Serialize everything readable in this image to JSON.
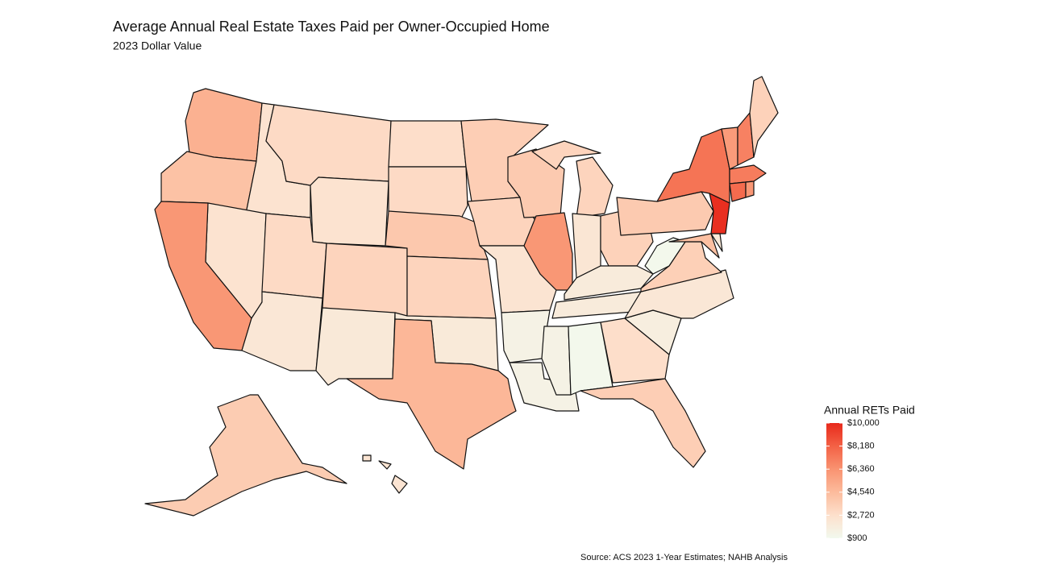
{
  "chart_data": {
    "type": "choropleth",
    "title": "Average Annual Real Estate Taxes Paid per Owner-Occupied Home",
    "subtitle": "2023 Dollar Value",
    "source": "Source: ACS 2023 1-Year Estimates; NAHB Analysis",
    "legend_title": "Annual RETs Paid",
    "values": [
      5000,
      4200,
      2500,
      3000,
      2500,
      2500,
      6200,
      3000,
      2200,
      3300,
      2100,
      2800,
      3000,
      3900,
      3300,
      2000,
      4700,
      3600,
      3300,
      2400,
      1400,
      1400,
      3800,
      6200,
      3300,
      2300,
      3400,
      1900,
      1900,
      1400,
      1000,
      2800,
      3600,
      1700,
      2200,
      3500,
      1000,
      3800,
      7500,
      9800,
      4300,
      2000,
      6000,
      7000,
      3400,
      7200,
      7800,
      6200,
      3700,
      2400
    ],
    "colorlim": [
      900,
      10000
    ],
    "colorticks": [
      {
        "value": 900,
        "label": "$900"
      },
      {
        "value": 2720,
        "label": "$2,720"
      },
      {
        "value": 4540,
        "label": "$4,540"
      },
      {
        "value": 6360,
        "label": "$6,360"
      },
      {
        "value": 8180,
        "label": "$8,180"
      },
      {
        "value": 10000,
        "label": "$10,000"
      }
    ],
    "colors": [
      "#f2f9ee",
      "#fde0cc",
      "#fcbb9c",
      "#f99371",
      "#f36145",
      "#e8291b"
    ]
  }
}
